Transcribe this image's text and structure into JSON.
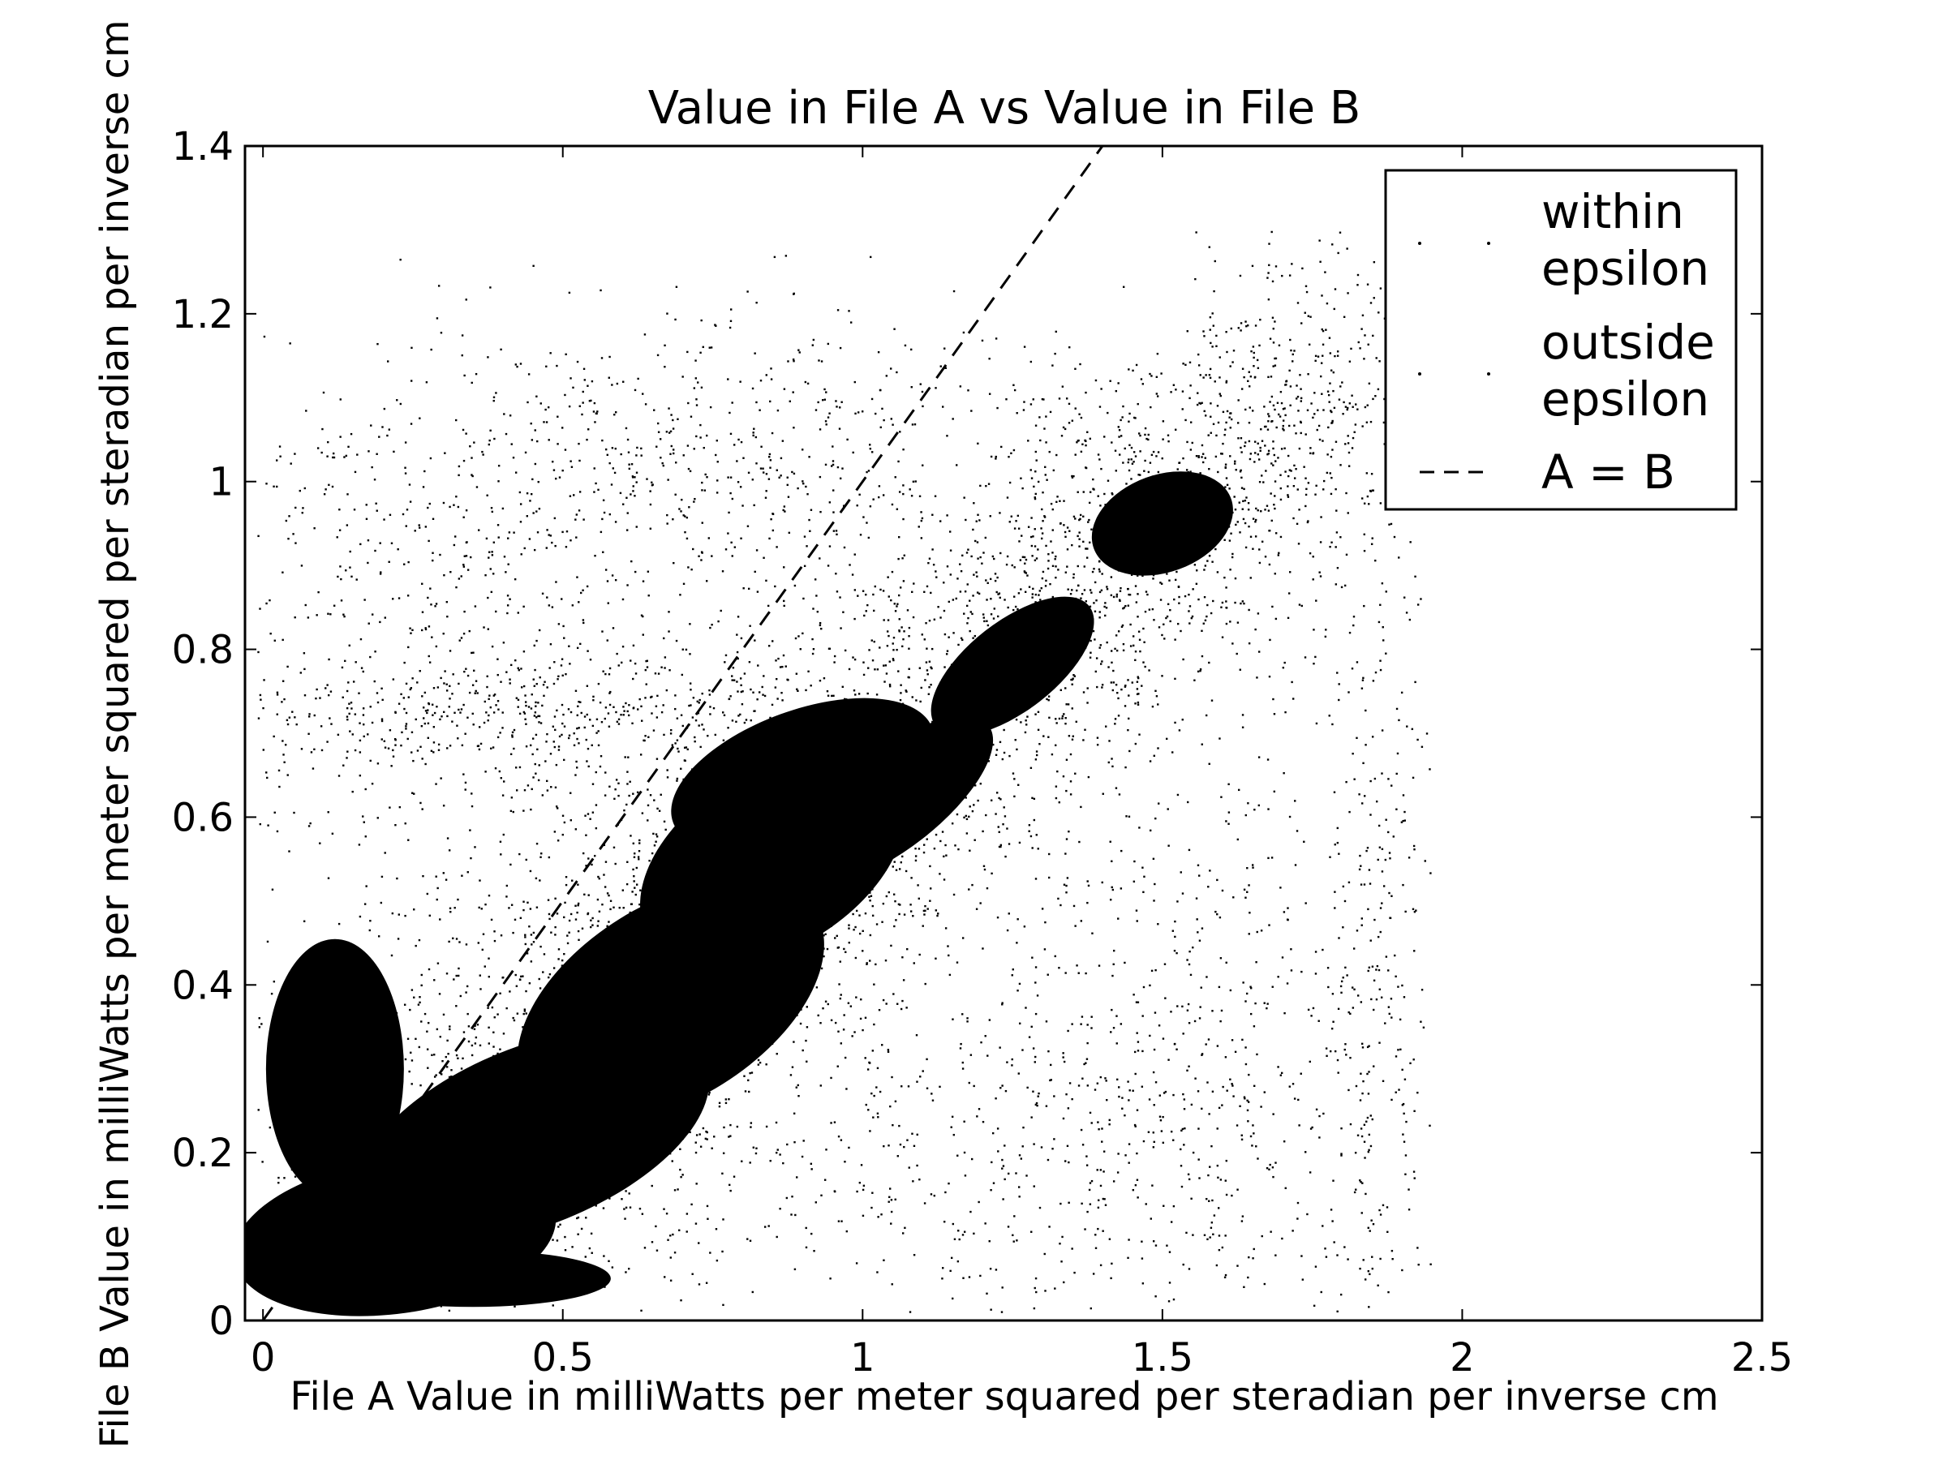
{
  "chart_data": {
    "type": "scatter",
    "title": "Value in File A vs Value in File B",
    "xlabel": "File A Value in milliWatts per meter squared per steradian per inverse cm",
    "ylabel": "File B Value in milliWatts per meter squared per steradian per inverse cm",
    "xlim": [
      -0.03,
      2.5
    ],
    "ylim": [
      0,
      1.4
    ],
    "x_ticks": [
      0,
      0.5,
      1,
      1.5,
      2,
      2.5
    ],
    "x_tick_labels": [
      "0",
      "0.5",
      "1",
      "1.5",
      "2",
      "2.5"
    ],
    "y_ticks": [
      0,
      0.2,
      0.4,
      0.6,
      0.8,
      1,
      1.2,
      1.4
    ],
    "y_tick_labels": [
      "0",
      "0.2",
      "0.4",
      "0.6",
      "0.8",
      "1",
      "1.2",
      "1.4"
    ],
    "grid": false,
    "legend_position": "top-right",
    "series": [
      {
        "name": "within epsilon",
        "legend_label_lines": [
          "within",
          "epsilon"
        ],
        "marker": "point",
        "color": "#000000",
        "points": []
      },
      {
        "name": "outside epsilon",
        "legend_label_lines": [
          "outside",
          "epsilon"
        ],
        "marker": "point",
        "color": "#000000",
        "note_clusters": [
          {
            "x": 0.3,
            "y": 0.15
          },
          {
            "x": 0.9,
            "y": 0.6
          },
          {
            "x": 1.55,
            "y": 1.02
          },
          {
            "x": 0.1,
            "y": 0.69
          }
        ]
      },
      {
        "name": "A = B",
        "legend_label_lines": [
          "A = B"
        ],
        "type": "line",
        "style": "dashed",
        "color": "#000000",
        "points": [
          [
            0.0,
            0.0
          ],
          [
            1.4,
            1.4
          ]
        ]
      }
    ]
  }
}
